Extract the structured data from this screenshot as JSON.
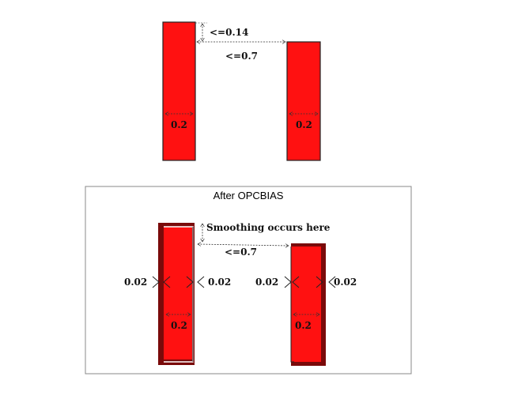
{
  "top": {
    "spacing_label": "<=0.14",
    "gap_label": "<=0.7",
    "left_width_label": "0.2",
    "right_width_label": "0.2"
  },
  "bottom": {
    "title": "After OPCBIAS",
    "smoothing_label": "Smoothing occurs here",
    "gap_label": "<=0.7",
    "bias_labels": [
      "0.02",
      "0.02",
      "0.02",
      "0.02"
    ],
    "left_width_label": "0.2",
    "right_width_label": "0.2"
  },
  "colors": {
    "shape_fill": "#ff1111",
    "shape_outline": "#222222",
    "biased_fill": "#7a0a0a",
    "panel_border": "#888888"
  }
}
